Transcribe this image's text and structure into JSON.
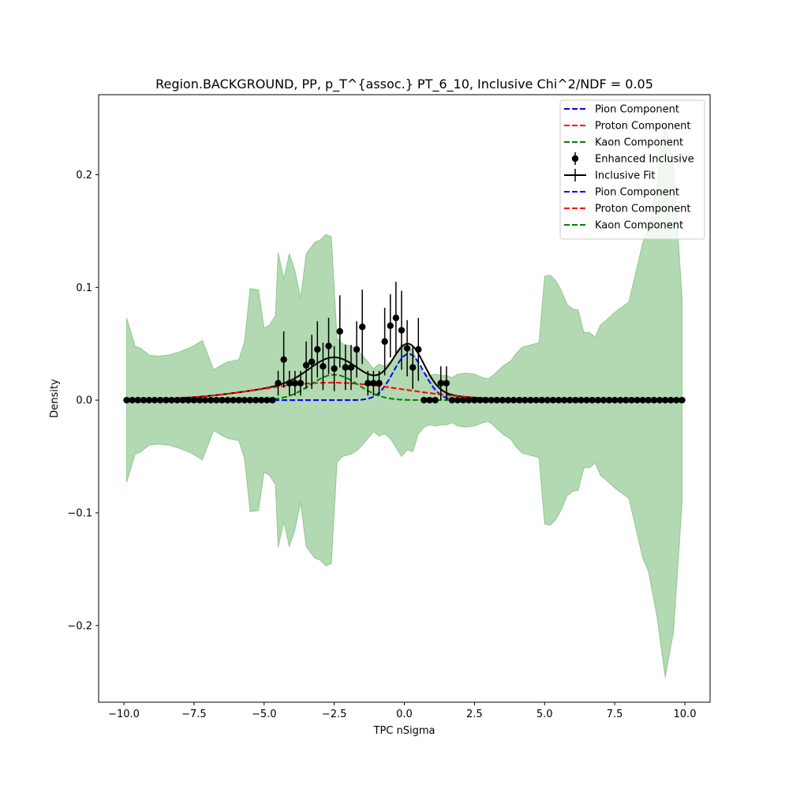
{
  "chart_data": {
    "type": "line",
    "title": "Region.BACKGROUND, PP, p_T^{assoc.} PT_6_10, Inclusive Chi^2/NDF = 0.05",
    "xlabel": "TPC nSigma",
    "ylabel": "Density",
    "xlim": [
      -10.9,
      10.9
    ],
    "ylim": [
      -0.268,
      0.271
    ],
    "xticks": [
      {
        "value": -10,
        "label": "−10.0"
      },
      {
        "value": -7.5,
        "label": "−7.5"
      },
      {
        "value": -5,
        "label": "−5.0"
      },
      {
        "value": -2.5,
        "label": "−2.5"
      },
      {
        "value": 0,
        "label": "0.0"
      },
      {
        "value": 2.5,
        "label": "2.5"
      },
      {
        "value": 5,
        "label": "5.0"
      },
      {
        "value": 7.5,
        "label": "7.5"
      },
      {
        "value": 10,
        "label": "10.0"
      }
    ],
    "yticks": [
      {
        "value": -0.2,
        "label": "−0.2"
      },
      {
        "value": -0.1,
        "label": "−0.1"
      },
      {
        "value": 0,
        "label": "0.0"
      },
      {
        "value": 0.1,
        "label": "0.1"
      },
      {
        "value": 0.2,
        "label": "0.2"
      }
    ],
    "grid": false,
    "legend_position": "top-right",
    "legend": [
      {
        "label": "Pion Component",
        "style": "dashed",
        "color": "#0000ff"
      },
      {
        "label": "Proton Component",
        "style": "dashed",
        "color": "#ff0000"
      },
      {
        "label": "Kaon Component",
        "style": "dashed",
        "color": "#008000"
      },
      {
        "label": "Enhanced Inclusive",
        "style": "errorbar-marker",
        "color": "#000000"
      },
      {
        "label": "Inclusive Fit",
        "style": "line",
        "color": "#000000"
      },
      {
        "label": "Pion Component",
        "style": "dashed",
        "color": "#0000ff"
      },
      {
        "label": "Proton Component",
        "style": "dashed",
        "color": "#ff0000"
      },
      {
        "label": "Kaon Component",
        "style": "dashed",
        "color": "#008000"
      }
    ],
    "band": {
      "color": "#008000",
      "opacity": 0.3,
      "x": [
        -9.9,
        -9.6,
        -9.4,
        -9.1,
        -8.8,
        -8.4,
        -8.0,
        -7.6,
        -7.4,
        -7.2,
        -6.8,
        -6.6,
        -6.3,
        -5.9,
        -5.7,
        -5.5,
        -5.2,
        -5.0,
        -4.8,
        -4.6,
        -4.5,
        -4.3,
        -4.1,
        -3.9,
        -3.7,
        -3.5,
        -3.2,
        -3.0,
        -2.8,
        -2.6,
        -2.4,
        -2.2,
        -1.9,
        -1.7,
        -1.5,
        -1.3,
        -1.1,
        -0.9,
        -0.7,
        -0.5,
        -0.3,
        -0.1,
        0.1,
        0.3,
        0.5,
        0.7,
        0.9,
        1.1,
        1.3,
        1.5,
        1.7,
        1.9,
        2.2,
        2.5,
        2.8,
        3.0,
        3.2,
        3.5,
        3.8,
        4.0,
        4.2,
        4.5,
        4.8,
        5.0,
        5.2,
        5.4,
        5.6,
        5.8,
        6.0,
        6.2,
        6.4,
        6.6,
        6.8,
        7.0,
        7.2,
        7.5,
        8.0,
        8.5,
        8.7,
        9.0,
        9.3,
        9.6,
        9.9
      ],
      "half_width": [
        0.073,
        0.048,
        0.046,
        0.04,
        0.039,
        0.04,
        0.043,
        0.047,
        0.05,
        0.053,
        0.027,
        0.03,
        0.034,
        0.036,
        0.052,
        0.099,
        0.098,
        0.064,
        0.067,
        0.075,
        0.131,
        0.108,
        0.13,
        0.115,
        0.091,
        0.13,
        0.14,
        0.142,
        0.147,
        0.145,
        0.055,
        0.05,
        0.048,
        0.045,
        0.04,
        0.034,
        0.028,
        0.032,
        0.03,
        0.034,
        0.042,
        0.05,
        0.044,
        0.046,
        0.03,
        0.024,
        0.022,
        0.023,
        0.022,
        0.022,
        0.02,
        0.023,
        0.024,
        0.023,
        0.02,
        0.019,
        0.023,
        0.03,
        0.035,
        0.042,
        0.047,
        0.049,
        0.051,
        0.11,
        0.111,
        0.106,
        0.097,
        0.085,
        0.081,
        0.08,
        0.06,
        0.06,
        0.056,
        0.067,
        0.071,
        0.078,
        0.087,
        0.14,
        0.152,
        0.191,
        0.246,
        0.205,
        0.092
      ]
    },
    "series": [
      {
        "name": "Enhanced Inclusive",
        "type": "errorbar",
        "color": "#000000",
        "x": [
          -9.9,
          -9.7,
          -9.5,
          -9.3,
          -9.1,
          -8.9,
          -8.7,
          -8.5,
          -8.3,
          -8.1,
          -7.9,
          -7.7,
          -7.5,
          -7.3,
          -7.1,
          -6.9,
          -6.7,
          -6.5,
          -6.3,
          -6.1,
          -5.9,
          -5.7,
          -5.5,
          -5.3,
          -5.1,
          -4.9,
          -4.7,
          -4.5,
          -4.3,
          -4.1,
          -3.9,
          -3.7,
          -3.5,
          -3.3,
          -3.1,
          -2.9,
          -2.7,
          -2.5,
          -2.3,
          -2.1,
          -1.9,
          -1.7,
          -1.5,
          -1.3,
          -1.1,
          -0.9,
          -0.7,
          -0.5,
          -0.3,
          -0.1,
          0.1,
          0.3,
          0.5,
          0.7,
          0.9,
          1.1,
          1.3,
          1.5,
          1.7,
          1.9,
          2.1,
          2.3,
          2.5,
          2.7,
          2.9,
          3.1,
          3.3,
          3.5,
          3.7,
          3.9,
          4.1,
          4.3,
          4.5,
          4.7,
          4.9,
          5.1,
          5.3,
          5.5,
          5.7,
          5.9,
          6.1,
          6.3,
          6.5,
          6.7,
          6.9,
          7.1,
          7.3,
          7.5,
          7.7,
          7.9,
          8.1,
          8.3,
          8.5,
          8.7,
          8.9,
          9.1,
          9.3,
          9.5,
          9.7,
          9.9
        ],
        "y": [
          0,
          0,
          0,
          0,
          0,
          0,
          0,
          0,
          0,
          0,
          0,
          0,
          0,
          0,
          0,
          0,
          0,
          0,
          0,
          0,
          0,
          0,
          0,
          0,
          0,
          0,
          0,
          0.015,
          0.036,
          0.015,
          0.015,
          0.015,
          0.031,
          0.034,
          0.045,
          0.03,
          0.048,
          0.028,
          0.061,
          0.029,
          0.029,
          0.045,
          0.065,
          0.015,
          0.015,
          0.015,
          0.052,
          0.066,
          0.073,
          0.062,
          0.046,
          0.029,
          0.045,
          0,
          0,
          0,
          0.015,
          0.015,
          0,
          0,
          0,
          0,
          0,
          0,
          0,
          0,
          0,
          0,
          0,
          0,
          0,
          0,
          0,
          0,
          0,
          0,
          0,
          0,
          0,
          0,
          0,
          0,
          0,
          0,
          0,
          0,
          0,
          0,
          0,
          0,
          0,
          0,
          0,
          0,
          0,
          0,
          0,
          0,
          0,
          0
        ],
        "yerr": [
          0,
          0,
          0,
          0,
          0,
          0,
          0,
          0,
          0,
          0,
          0,
          0,
          0,
          0,
          0,
          0,
          0,
          0,
          0,
          0,
          0,
          0,
          0,
          0,
          0,
          0,
          0,
          0.011,
          0.025,
          0.011,
          0.011,
          0.011,
          0.021,
          0.024,
          0.025,
          0.021,
          0.025,
          0.02,
          0.032,
          0.02,
          0.02,
          0.025,
          0.033,
          0.011,
          0.011,
          0.011,
          0.03,
          0.028,
          0.032,
          0.035,
          0.025,
          0.019,
          0.028,
          0,
          0,
          0,
          0.015,
          0.015,
          0,
          0,
          0,
          0,
          0,
          0,
          0,
          0,
          0,
          0,
          0,
          0,
          0,
          0,
          0,
          0,
          0,
          0,
          0,
          0,
          0,
          0,
          0,
          0,
          0,
          0,
          0,
          0,
          0,
          0,
          0,
          0,
          0,
          0,
          0,
          0,
          0,
          0,
          0,
          0,
          0,
          0
        ]
      },
      {
        "name": "Pion Component",
        "type": "gaussian-dashed",
        "color": "#0000ff",
        "amplitude": 0.041,
        "mean": 0.15,
        "sigma": 0.55
      },
      {
        "name": "Proton Component",
        "type": "gaussian-dashed",
        "color": "#ff0000",
        "amplitude": 0.0155,
        "mean": -2.6,
        "sigma": 2.6
      },
      {
        "name": "Kaon Component",
        "type": "gaussian-dashed",
        "color": "#008000",
        "amplitude": 0.0225,
        "mean": -2.5,
        "sigma": 0.85
      },
      {
        "name": "Inclusive Fit",
        "type": "sum-line",
        "color": "#000000"
      }
    ]
  }
}
